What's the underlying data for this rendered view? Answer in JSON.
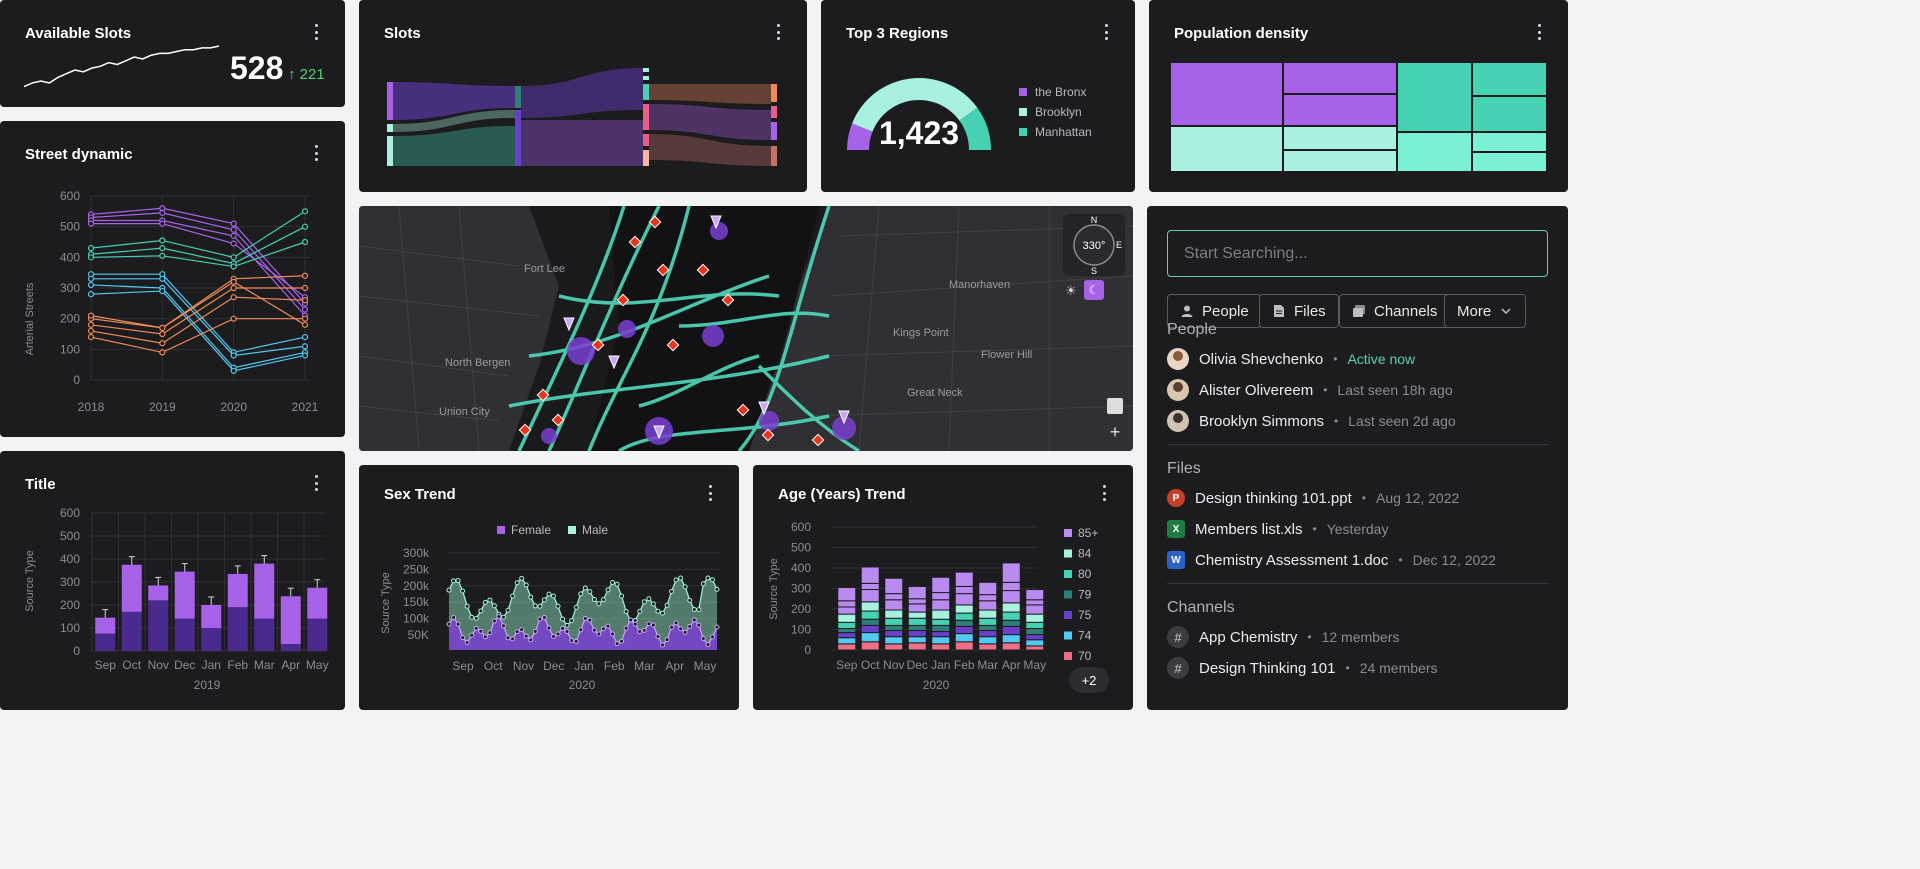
{
  "available_slots": {
    "title": "Available Slots",
    "value": "528",
    "delta": "221",
    "delta_icon": "arrow-up-icon",
    "sparkline": [
      4,
      6,
      7,
      6,
      9,
      11,
      13,
      12,
      14,
      15,
      17,
      16,
      18,
      20,
      19,
      21,
      22,
      22,
      23,
      24,
      24,
      25,
      25,
      26
    ]
  },
  "slots": {
    "title": "Slots"
  },
  "top_regions": {
    "title": "Top 3 Regions",
    "value": "1,423",
    "legend": [
      {
        "label": "the Bronx",
        "color": "#a862e9"
      },
      {
        "label": "Brooklyn",
        "color": "#a8f1e0"
      },
      {
        "label": "Manhattan",
        "color": "#46d1b3"
      }
    ],
    "gauge": {
      "bronx": 0.12,
      "brooklyn": 0.68,
      "manhattan": 0.2
    }
  },
  "population_density": {
    "title": "Population density"
  },
  "street_dynamic": {
    "title": "Street dynamic",
    "ylabel": "Arterial Streets",
    "yticks": [
      "600",
      "500",
      "400",
      "300",
      "200",
      "100",
      "0"
    ],
    "xticks": [
      "2018",
      "2019",
      "2020",
      "2021"
    ]
  },
  "title_chart": {
    "title": "Title",
    "ylabel": "Source Type",
    "yticks": [
      "600",
      "500",
      "400",
      "300",
      "200",
      "100",
      "0"
    ],
    "xticks": [
      "Sep",
      "Oct",
      "Nov",
      "Dec",
      "Jan",
      "Feb",
      "Mar",
      "Apr",
      "May"
    ],
    "xlabel": "2019"
  },
  "sex_trend": {
    "title": "Sex Trend",
    "legend": [
      {
        "label": "Female",
        "color": "#a862e9"
      },
      {
        "label": "Male",
        "color": "#a8f1e0"
      }
    ],
    "ylabel": "Source Type",
    "yticks": [
      "300k",
      "250k",
      "200k",
      "150k",
      "100k",
      "50K"
    ],
    "xticks": [
      "Sep",
      "Oct",
      "Nov",
      "Dec",
      "Jan",
      "Feb",
      "Mar",
      "Apr",
      "May"
    ],
    "xlabel": "2020"
  },
  "age_trend": {
    "title": "Age (Years) Trend",
    "ylabel": "Source Type",
    "yticks": [
      "600",
      "500",
      "400",
      "300",
      "200",
      "100",
      "0"
    ],
    "xticks": [
      "Sep",
      "Oct",
      "Nov",
      "Dec",
      "Jan",
      "Feb",
      "Mar",
      "Apr",
      "May"
    ],
    "xlabel": "2020",
    "legend": [
      {
        "label": "85+",
        "color": "#b98af0"
      },
      {
        "label": "84",
        "color": "#a8f1e0"
      },
      {
        "label": "80",
        "color": "#46d1b3"
      },
      {
        "label": "79",
        "color": "#2e7e7a"
      },
      {
        "label": "75",
        "color": "#6a3fc9"
      },
      {
        "label": "74",
        "color": "#52c9f0"
      },
      {
        "label": "70",
        "color": "#ef6f86"
      }
    ],
    "more": "+2"
  },
  "map": {
    "compass_heading": "330°",
    "compass_n": "N",
    "compass_e": "E",
    "compass_s": "S",
    "labels": [
      "Fort Lee",
      "North Bergen",
      "Union City",
      "Manorhaven",
      "Kings Point",
      "Flower Hill",
      "Great Neck"
    ]
  },
  "search": {
    "placeholder": "Start Searching...",
    "filters": [
      {
        "label": "People",
        "icon": "person-icon"
      },
      {
        "label": "Files",
        "icon": "file-icon"
      },
      {
        "label": "Channels",
        "icon": "channels-icon"
      },
      {
        "label": "More",
        "icon": "chevron-down-icon"
      }
    ],
    "people_title": "People",
    "people": [
      {
        "name": "Olivia Shevchenko",
        "status": "Active now"
      },
      {
        "name": "Alister Olivereem",
        "status": "Last seen 18h ago"
      },
      {
        "name": "Brooklyn Simmons",
        "status": "Last seen 2d ago"
      }
    ],
    "files_title": "Files",
    "files": [
      {
        "name": "Design thinking 101.ppt",
        "date": "Aug 12, 2022"
      },
      {
        "name": "Members list.xls",
        "date": "Yesterday"
      },
      {
        "name": "Chemistry Assessment 1.doc",
        "date": "Dec 12, 2022"
      }
    ],
    "channels_title": "Channels",
    "channels": [
      {
        "name": "App Chemistry",
        "members": "12 members"
      },
      {
        "name": "Design Thinking 101",
        "members": "24 members"
      }
    ]
  }
}
